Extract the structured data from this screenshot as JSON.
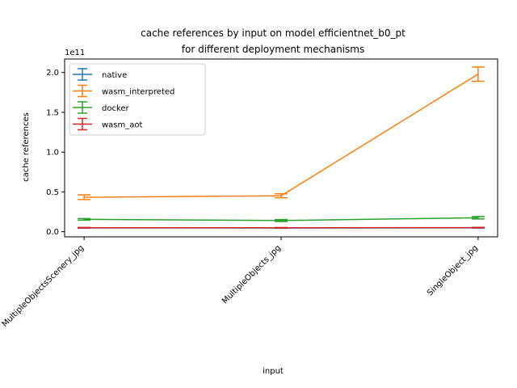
{
  "chart_data": {
    "type": "line",
    "title_line1": "cache references by input on model efficientnet_b0_pt",
    "title_line2": "for different deployment mechanisms",
    "xlabel": "input",
    "ylabel": "cache references",
    "y_offset_label": "1e11",
    "y_scale": 100000000000,
    "categories": [
      "MultipleObjectsScenery_jpg",
      "MultipleObjects_jpg",
      "SingleObject_jpg"
    ],
    "ylim": [
      -0.065,
      2.17
    ],
    "yticks": [
      0.0,
      0.5,
      1.0,
      1.5,
      2.0
    ],
    "ytick_labels": [
      "0.0",
      "0.5",
      "1.0",
      "1.5",
      "2.0"
    ],
    "legend_position": "upper left",
    "grid": false,
    "series": [
      {
        "name": "native",
        "color": "#1f77b4",
        "values": [
          0.047,
          0.046,
          0.048
        ],
        "errors": [
          0.003,
          0.003,
          0.003
        ]
      },
      {
        "name": "wasm_interpreted",
        "color": "#ff7f0e",
        "values": [
          0.433,
          0.451,
          1.98
        ],
        "errors": [
          0.03,
          0.025,
          0.09
        ]
      },
      {
        "name": "docker",
        "color": "#2ca02c",
        "values": [
          0.155,
          0.14,
          0.175
        ],
        "errors": [
          0.01,
          0.012,
          0.015
        ]
      },
      {
        "name": "wasm_aot",
        "color": "#d62728",
        "values": [
          0.05,
          0.049,
          0.051
        ],
        "errors": [
          0.003,
          0.003,
          0.003
        ]
      }
    ]
  }
}
